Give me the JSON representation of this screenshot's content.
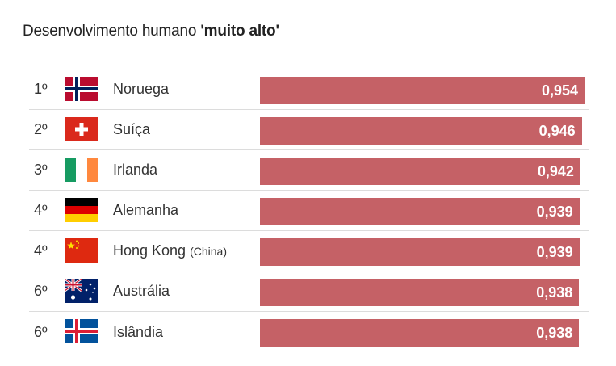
{
  "title": {
    "prefix": "Desenvolvimento humano ",
    "bold": "'muito alto'"
  },
  "colors": {
    "bar": "#c56166",
    "label": "#ffffff"
  },
  "chart_data": {
    "type": "bar",
    "orientation": "horizontal",
    "title": "Desenvolvimento humano 'muito alto'",
    "xlim": [
      0,
      0.954
    ],
    "grid": false,
    "rows": [
      {
        "rank": "1º",
        "country": "Noruega",
        "note": "",
        "flag": "norway-flag",
        "value": 0.954,
        "label": "0,954"
      },
      {
        "rank": "2º",
        "country": "Suíça",
        "note": "",
        "flag": "switzerland-flag",
        "value": 0.946,
        "label": "0,946"
      },
      {
        "rank": "3º",
        "country": "Irlanda",
        "note": "",
        "flag": "ireland-flag",
        "value": 0.942,
        "label": "0,942"
      },
      {
        "rank": "4º",
        "country": "Alemanha",
        "note": "",
        "flag": "germany-flag",
        "value": 0.939,
        "label": "0,939"
      },
      {
        "rank": "4º",
        "country": "Hong Kong",
        "note": "(China)",
        "flag": "china-flag",
        "value": 0.939,
        "label": "0,939"
      },
      {
        "rank": "6º",
        "country": "Austrália",
        "note": "",
        "flag": "australia-flag",
        "value": 0.938,
        "label": "0,938"
      },
      {
        "rank": "6º",
        "country": "Islândia",
        "note": "",
        "flag": "iceland-flag",
        "value": 0.938,
        "label": "0,938"
      }
    ]
  }
}
